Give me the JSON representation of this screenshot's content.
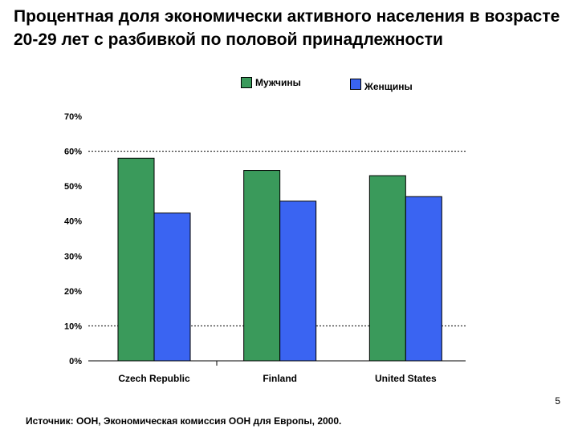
{
  "title": "Процентная доля экономически активного населения в возрасте 20-29 лет с разбивкой по половой принадлежности",
  "legend": {
    "men": "Мужчины",
    "women": "Женщины"
  },
  "page_number": "5",
  "source": "Источник: ООН, Экономическая комиссия ООН для Европы, 2000.",
  "colors": {
    "men": "#3a9a5b",
    "women": "#3a64f2"
  },
  "chart_data": {
    "type": "bar",
    "title": "Процентная доля экономически активного населения в возрасте 20-29 лет с разбивкой по половой принадлежности",
    "categories": [
      "Czech Republic",
      "Finland",
      "United States"
    ],
    "series": [
      {
        "name": "Мужчины",
        "values": [
          58,
          54.5,
          53
        ]
      },
      {
        "name": "Женщины",
        "values": [
          42.3,
          45.7,
          47
        ]
      }
    ],
    "ylim": [
      0,
      70
    ],
    "yticks": [
      "0%",
      "10%",
      "20%",
      "30%",
      "40%",
      "50%",
      "60%",
      "70%"
    ],
    "reference_lines": [
      60,
      10
    ],
    "legend_position": "top",
    "grid": false
  }
}
